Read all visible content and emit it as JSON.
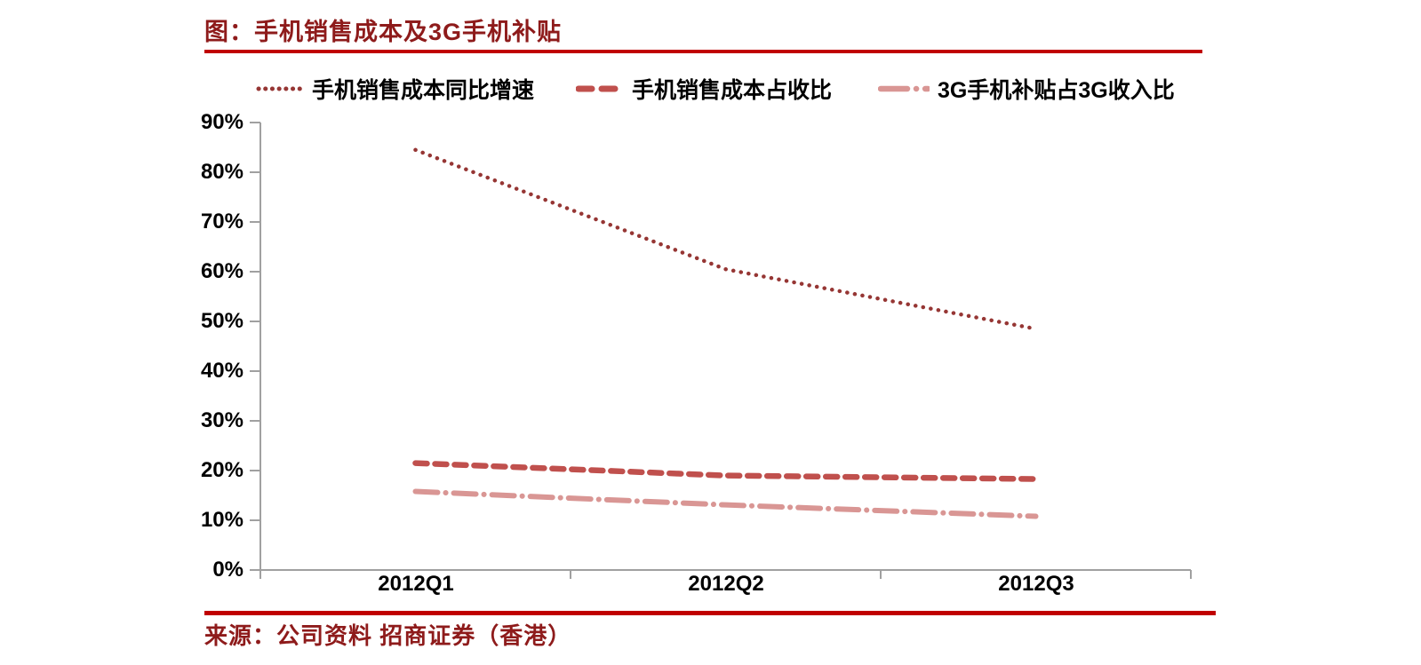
{
  "figure": {
    "title": "图：手机销售成本及3G手机补贴",
    "source": "来源：公司资料 招商证券（香港）",
    "title_color": "#8E1B1B",
    "rule_color": "#C00000"
  },
  "chart_data": {
    "type": "line",
    "categories": [
      "2012Q1",
      "2012Q2",
      "2012Q3"
    ],
    "series": [
      {
        "name": "手机销售成本同比增速",
        "dash": "dotted",
        "color": "#963634",
        "values": [
          84.5,
          60.5,
          48.5
        ]
      },
      {
        "name": "手机销售成本占收比",
        "dash": "dashed",
        "color": "#C0504D",
        "values": [
          21.5,
          19.0,
          18.3
        ]
      },
      {
        "name": "3G手机补贴占3G收入比",
        "dash": "dashdot",
        "color": "#D99694",
        "values": [
          15.8,
          13.1,
          10.8
        ]
      }
    ],
    "ylim": [
      0,
      90
    ],
    "ytick_step": 10,
    "ytick_labels_top_to_bottom": [
      "90%",
      "80%",
      "70%",
      "60%",
      "50%",
      "40%",
      "30%",
      "20%",
      "10%",
      "0%"
    ],
    "axis_color": "#A0A0A0",
    "grid": false,
    "legend_position": "top"
  }
}
